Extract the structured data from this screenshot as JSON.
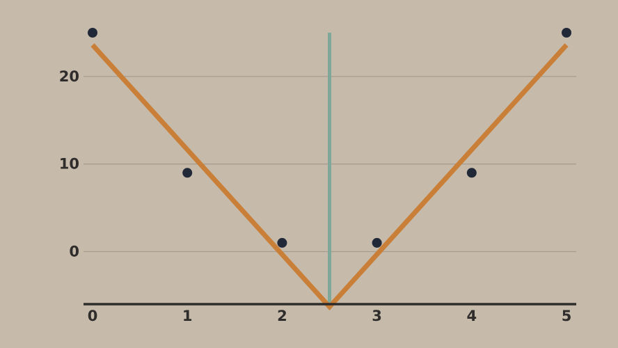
{
  "chart_data": {
    "type": "scatter",
    "title": "",
    "xlabel": "",
    "ylabel": "",
    "xlim": [
      0,
      5
    ],
    "ylim": [
      -6,
      25
    ],
    "grid": "horizontal",
    "x_ticks": [
      "0",
      "1",
      "2",
      "3",
      "4",
      "5"
    ],
    "y_ticks": [
      "0",
      "10",
      "20"
    ],
    "series": [
      {
        "kind": "points",
        "x": [
          0,
          1,
          2,
          3,
          4,
          5
        ],
        "y": [
          25,
          9,
          1,
          1,
          9,
          25
        ],
        "color": "#212838"
      },
      {
        "kind": "line",
        "x": [
          0,
          2.5,
          5
        ],
        "y": [
          23.6,
          -6.3,
          23.6
        ],
        "color": "#c97f38"
      }
    ],
    "vertical_line": {
      "x": 2.5,
      "y_range": [
        -6.3,
        25
      ],
      "color": "#7fa79a"
    }
  }
}
